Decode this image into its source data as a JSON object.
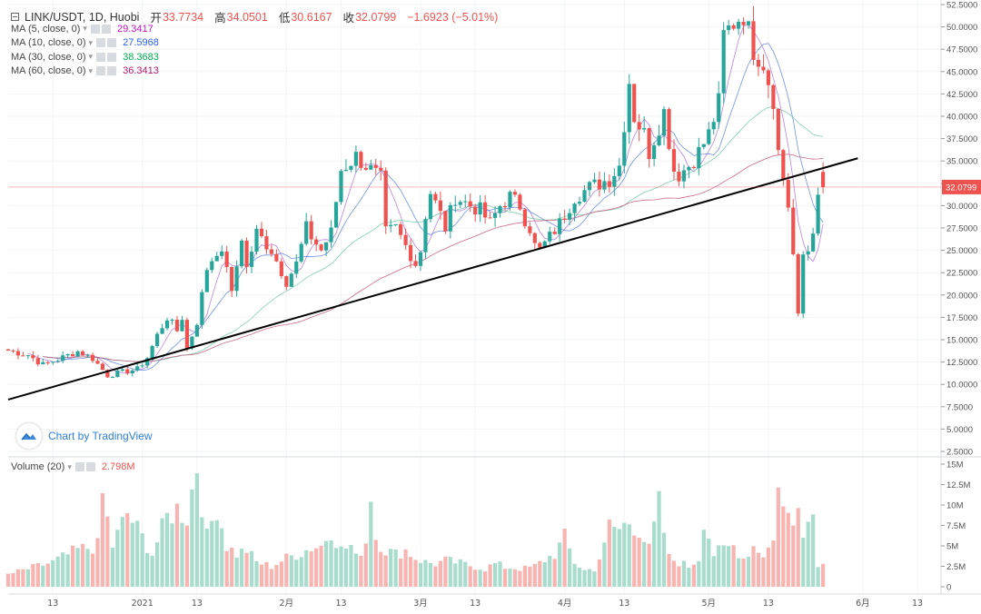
{
  "header": {
    "symbol": "LINK/USDT, 1D, Huobi",
    "open_label": "开",
    "open": "33.7734",
    "high_label": "高",
    "high": "34.0501",
    "low_label": "低",
    "low": "30.6167",
    "close_label": "收",
    "close": "32.0799",
    "change": "−1.6923 (−5.01%)"
  },
  "indicators": [
    {
      "label": "MA (5, close, 0)",
      "value": "29.3417",
      "color": "#d61fd6"
    },
    {
      "label": "MA (10, close, 0)",
      "value": "27.5968",
      "color": "#2962ff"
    },
    {
      "label": "MA (30, close, 0)",
      "value": "38.3683",
      "color": "#00b050"
    },
    {
      "label": "MA (60, close, 0)",
      "value": "36.3413",
      "color": "#b0186a"
    }
  ],
  "volume_indicator": {
    "label": "Volume (20)",
    "value": "2.798M"
  },
  "watermark": "Chart by TradingView",
  "colors": {
    "up": "#26a69a",
    "down": "#ef5350",
    "up_vol": "#a8dccd",
    "down_vol": "#f7b4b0",
    "ma5": "#b06ee0",
    "ma10": "#5b7fe0",
    "ma30": "#6cc8a0",
    "ma60": "#c2507a",
    "price_line": "#ef5350"
  },
  "chart_data": {
    "type": "candlestick",
    "price_axis": {
      "ticks": [
        "52.5000",
        "50.0000",
        "47.5000",
        "45.0000",
        "42.5000",
        "40.0000",
        "37.5000",
        "35.0000",
        "32.5000",
        "30.0000",
        "27.5000",
        "25.0000",
        "22.5000",
        "20.0000",
        "17.5000",
        "15.0000",
        "12.5000",
        "10.0000",
        "7.5000",
        "5.0000",
        "2.5000"
      ],
      "range": [
        2.5,
        52.5
      ]
    },
    "last_price_label": "32.0799",
    "volume_axis": {
      "ticks": [
        "15M",
        "12.5M",
        "10M",
        "7.5M",
        "5M",
        "2.5M",
        "0"
      ],
      "range": [
        0,
        15
      ]
    },
    "time_axis": {
      "ticks": [
        "13",
        "2021",
        "13",
        "2月",
        "13",
        "3月",
        "13",
        "4月",
        "13",
        "5月",
        "13",
        "6月",
        "13"
      ]
    },
    "trendline": {
      "from": {
        "day": 0,
        "price": 8.3
      },
      "to": {
        "day": 171,
        "price": 35.3
      }
    },
    "anchors_close": [
      [
        0,
        13.8
      ],
      [
        4,
        13.3
      ],
      [
        7,
        12.2
      ],
      [
        10,
        12.8
      ],
      [
        14,
        13.7
      ],
      [
        17,
        12.9
      ],
      [
        20,
        11.0
      ],
      [
        24,
        11.5
      ],
      [
        26,
        11.7
      ],
      [
        28,
        13.0
      ],
      [
        30,
        15.5
      ],
      [
        32,
        17.5
      ],
      [
        34,
        16.0
      ],
      [
        35,
        17.5
      ],
      [
        36,
        14.0
      ],
      [
        38,
        17.0
      ],
      [
        40,
        23.0
      ],
      [
        42,
        25.0
      ],
      [
        44,
        23.5
      ],
      [
        45,
        20.0
      ],
      [
        47,
        26.5
      ],
      [
        48,
        23.0
      ],
      [
        50,
        27.0
      ],
      [
        53,
        25.0
      ],
      [
        56,
        21.5
      ],
      [
        58,
        23.5
      ],
      [
        60,
        27.5
      ],
      [
        61,
        26.5
      ],
      [
        63,
        25.0
      ],
      [
        65,
        27.0
      ],
      [
        67,
        34.0
      ],
      [
        70,
        35.5
      ],
      [
        73,
        34.0
      ],
      [
        75,
        33.0
      ],
      [
        76,
        27.0
      ],
      [
        78,
        27.5
      ],
      [
        80,
        25.5
      ],
      [
        82,
        23.5
      ],
      [
        83,
        25.0
      ],
      [
        84,
        29.0
      ],
      [
        85,
        31.5
      ],
      [
        87,
        29.0
      ],
      [
        88,
        27.5
      ],
      [
        90,
        31.0
      ],
      [
        93,
        30.0
      ],
      [
        95,
        29.5
      ],
      [
        97,
        28.0
      ],
      [
        99,
        30.0
      ],
      [
        101,
        31.0
      ],
      [
        103,
        30.0
      ],
      [
        104,
        28.5
      ],
      [
        105,
        27.5
      ],
      [
        106,
        25.5
      ],
      [
        107,
        25.0
      ],
      [
        109,
        26.5
      ],
      [
        111,
        28.0
      ],
      [
        114,
        31.0
      ],
      [
        117,
        32.0
      ],
      [
        121,
        33.0
      ],
      [
        123,
        34.5
      ],
      [
        125,
        44.0
      ],
      [
        126,
        40.0
      ],
      [
        128,
        38.0
      ],
      [
        129,
        36.0
      ],
      [
        132,
        40.5
      ],
      [
        134,
        34.0
      ],
      [
        135,
        33.5
      ],
      [
        137,
        34.5
      ],
      [
        139,
        36.0
      ],
      [
        141,
        38.0
      ],
      [
        143,
        41.5
      ],
      [
        144,
        49.0
      ],
      [
        146,
        50.5
      ],
      [
        148,
        51.5
      ],
      [
        150,
        47.5
      ],
      [
        152,
        46.0
      ],
      [
        154,
        42.0
      ],
      [
        155,
        36.0
      ],
      [
        156,
        33.0
      ],
      [
        157,
        30.0
      ],
      [
        158,
        24.5
      ],
      [
        159,
        17.5
      ],
      [
        160,
        24.5
      ],
      [
        161,
        25.0
      ],
      [
        162,
        27.5
      ],
      [
        163,
        30.5
      ],
      [
        164,
        32.0
      ]
    ],
    "vol_anchors": [
      [
        0,
        1.5
      ],
      [
        9,
        3.0
      ],
      [
        14,
        4.5
      ],
      [
        18,
        5.0
      ],
      [
        19,
        11.2
      ],
      [
        21,
        5.0
      ],
      [
        24,
        9.0
      ],
      [
        26,
        7.0
      ],
      [
        29,
        4.0
      ],
      [
        32,
        8.5
      ],
      [
        34,
        9.5
      ],
      [
        36,
        8.5
      ],
      [
        38,
        15.0
      ],
      [
        40,
        6.0
      ],
      [
        42,
        10.0
      ],
      [
        44,
        5.0
      ],
      [
        46,
        4.0
      ],
      [
        48,
        4.5
      ],
      [
        50,
        3.0
      ],
      [
        53,
        2.5
      ],
      [
        56,
        3.5
      ],
      [
        59,
        4.2
      ],
      [
        61,
        4.8
      ],
      [
        63,
        5.0
      ],
      [
        65,
        7.0
      ],
      [
        67,
        4.5
      ],
      [
        69,
        5.0
      ],
      [
        70,
        3.5
      ],
      [
        72,
        5.5
      ],
      [
        73,
        11.7
      ],
      [
        74,
        6.0
      ],
      [
        76,
        4.5
      ],
      [
        78,
        4.0
      ],
      [
        80,
        4.5
      ],
      [
        82,
        3.5
      ],
      [
        84,
        3.0
      ],
      [
        86,
        2.8
      ],
      [
        88,
        3.2
      ],
      [
        90,
        3.0
      ],
      [
        92,
        2.7
      ],
      [
        94,
        2.5
      ],
      [
        96,
        2.2
      ],
      [
        98,
        2.8
      ],
      [
        100,
        2.4
      ],
      [
        102,
        2.3
      ],
      [
        104,
        2.2
      ],
      [
        106,
        2.5
      ],
      [
        108,
        3.3
      ],
      [
        110,
        4.0
      ],
      [
        112,
        6.0
      ],
      [
        114,
        3.0
      ],
      [
        116,
        2.0
      ],
      [
        118,
        2.2
      ],
      [
        120,
        4.8
      ],
      [
        121,
        7.5
      ],
      [
        123,
        7.0
      ],
      [
        125,
        8.0
      ],
      [
        127,
        7.0
      ],
      [
        129,
        4.5
      ],
      [
        131,
        10.0
      ],
      [
        133,
        3.5
      ],
      [
        135,
        3.0
      ],
      [
        137,
        2.5
      ],
      [
        139,
        3.5
      ],
      [
        140,
        8.5
      ],
      [
        142,
        4.0
      ],
      [
        144,
        4.5
      ],
      [
        146,
        5.0
      ],
      [
        148,
        3.5
      ],
      [
        150,
        5.0
      ],
      [
        152,
        4.0
      ],
      [
        154,
        5.5
      ],
      [
        155,
        13.7
      ],
      [
        156,
        9.5
      ],
      [
        158,
        7.5
      ],
      [
        159,
        11.5
      ],
      [
        160,
        7.5
      ],
      [
        161,
        8.0
      ],
      [
        162,
        9.0
      ],
      [
        163,
        3.0
      ]
    ]
  }
}
